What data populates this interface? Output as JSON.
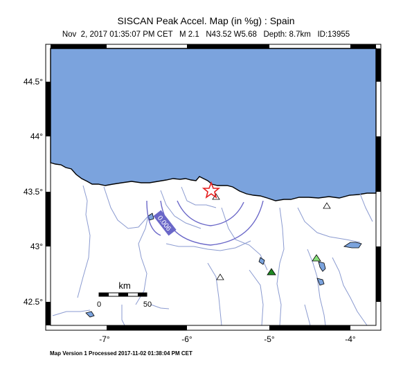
{
  "map": {
    "title": "SISCAN Peak Accel. Map (in %g) : Spain",
    "subtitle": "Nov  2, 2017 01:35:07 PM CET   M 2.1   N43.52 W5.68   Depth: 8.7km   ID:13955",
    "footer": "Map Version 1 Processed 2017-11-02 01:38:04 PM CET",
    "x_ticks": [
      "-7°",
      "-6°",
      "-5°",
      "-4°"
    ],
    "y_ticks": [
      "44.5°",
      "44°",
      "43.5°",
      "43°",
      "42.5°"
    ],
    "scale_bar": {
      "unit": "km",
      "zero": "0",
      "max": "50"
    },
    "contour_label": "0.006",
    "colors": {
      "sea": "#7ba3dd",
      "river": "#8a9ad0",
      "contour": "#6a67c8",
      "epicenter": "#e51c1c",
      "station_green_dark": "#1f8a24",
      "station_green_light": "#88e07a"
    },
    "epicenter": {
      "lat": 43.52,
      "lon": -5.68
    }
  }
}
